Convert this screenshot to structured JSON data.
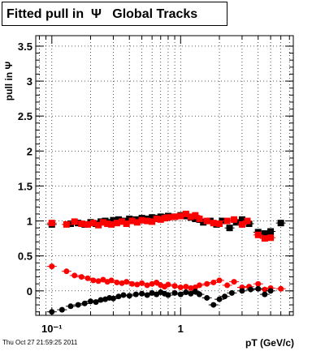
{
  "title": "Fitted pull in  Ψ   Global Tracks",
  "timestamp": "Thu Oct 27 21:59:25 2011",
  "chart_data": {
    "type": "scatter",
    "title": "Fitted pull in  Ψ   Global Tracks",
    "xlabel": "pT (GeV/c)",
    "ylabel": "pull in Ψ",
    "xscale": "log",
    "xlim": [
      0.075,
      7.5
    ],
    "ylim": [
      -0.35,
      3.65
    ],
    "grid": true,
    "x_tick_labels": [
      "10⁻¹",
      "1"
    ],
    "y_tick_labels": [
      "0",
      "0.5",
      "1",
      "1.5",
      "2",
      "2.5",
      "3",
      "3.5"
    ],
    "series": [
      {
        "marker": "square",
        "color": "#000000",
        "x": [
          0.1,
          0.14,
          0.16,
          0.18,
          0.2,
          0.22,
          0.24,
          0.26,
          0.28,
          0.3,
          0.33,
          0.36,
          0.4,
          0.45,
          0.5,
          0.55,
          0.6,
          0.65,
          0.7,
          0.75,
          0.8,
          0.9,
          1.0,
          1.1,
          1.2,
          1.3,
          1.4,
          1.5,
          1.7,
          1.9,
          2.1,
          2.4,
          2.7,
          3.0,
          3.4,
          4.0,
          4.5,
          5.0,
          6.0
        ],
        "y": [
          0.95,
          0.96,
          0.97,
          0.95,
          0.98,
          0.96,
          0.99,
          1.0,
          0.98,
          1.01,
          1.02,
          1.0,
          1.03,
          1.02,
          1.04,
          1.03,
          1.05,
          1.04,
          1.06,
          1.05,
          1.07,
          1.06,
          1.08,
          1.07,
          1.05,
          1.03,
          1.02,
          0.98,
          1.0,
          0.95,
          1.0,
          0.9,
          0.98,
          1.02,
          0.96,
          0.84,
          0.82,
          0.85,
          0.97
        ]
      },
      {
        "marker": "square",
        "color": "#ff0000",
        "x": [
          0.1,
          0.13,
          0.15,
          0.17,
          0.19,
          0.21,
          0.23,
          0.25,
          0.27,
          0.29,
          0.32,
          0.35,
          0.38,
          0.42,
          0.46,
          0.5,
          0.55,
          0.6,
          0.65,
          0.7,
          0.75,
          0.8,
          0.9,
          1.0,
          1.1,
          1.2,
          1.3,
          1.4,
          1.6,
          1.8,
          2.0,
          2.3,
          2.6,
          3.0,
          3.3,
          4.0,
          4.5,
          5.0
        ],
        "y": [
          0.97,
          0.95,
          0.99,
          0.96,
          0.95,
          0.97,
          0.94,
          0.98,
          0.96,
          0.95,
          0.97,
          0.99,
          0.96,
          1.0,
          0.98,
          1.01,
          1.0,
          0.99,
          1.03,
          1.02,
          1.04,
          1.05,
          1.06,
          1.07,
          1.1,
          1.06,
          1.08,
          1.03,
          1.0,
          0.97,
          0.96,
          1.0,
          1.02,
          0.95,
          1.0,
          0.8,
          0.75,
          0.76
        ]
      },
      {
        "marker": "circle",
        "color": "#ff0000",
        "x": [
          0.1,
          0.13,
          0.15,
          0.17,
          0.19,
          0.21,
          0.23,
          0.25,
          0.27,
          0.29,
          0.32,
          0.35,
          0.38,
          0.42,
          0.46,
          0.5,
          0.55,
          0.6,
          0.65,
          0.7,
          0.75,
          0.8,
          0.9,
          1.0,
          1.1,
          1.2,
          1.3,
          1.4,
          1.6,
          1.8,
          2.0,
          2.3,
          2.6,
          3.0,
          3.4,
          4.0,
          4.5,
          5.0,
          6.0
        ],
        "y": [
          0.35,
          0.28,
          0.22,
          0.2,
          0.18,
          0.15,
          0.14,
          0.16,
          0.13,
          0.15,
          0.12,
          0.11,
          0.13,
          0.1,
          0.09,
          0.11,
          0.08,
          0.1,
          0.12,
          0.08,
          0.06,
          0.09,
          0.07,
          0.05,
          0.06,
          0.04,
          0.05,
          0.08,
          0.1,
          0.12,
          0.15,
          0.08,
          0.13,
          0.05,
          0.06,
          0.1,
          0.02,
          0.04,
          0.03
        ]
      },
      {
        "marker": "circle",
        "color": "#000000",
        "x": [
          0.1,
          0.12,
          0.14,
          0.16,
          0.18,
          0.2,
          0.22,
          0.24,
          0.26,
          0.28,
          0.3,
          0.33,
          0.36,
          0.4,
          0.45,
          0.5,
          0.55,
          0.6,
          0.65,
          0.7,
          0.75,
          0.8,
          0.9,
          1.0,
          1.1,
          1.2,
          1.3,
          1.4,
          1.6,
          1.8,
          2.0,
          2.2,
          2.5,
          3.0,
          3.5,
          4.0,
          4.5,
          5.0
        ],
        "y": [
          -0.3,
          -0.27,
          -0.22,
          -0.2,
          -0.18,
          -0.15,
          -0.16,
          -0.13,
          -0.12,
          -0.1,
          -0.11,
          -0.08,
          -0.06,
          -0.07,
          -0.05,
          -0.04,
          -0.06,
          -0.03,
          -0.05,
          -0.02,
          -0.04,
          -0.06,
          -0.03,
          -0.05,
          -0.02,
          -0.04,
          -0.01,
          -0.05,
          -0.1,
          -0.2,
          -0.12,
          -0.08,
          -0.03,
          0.0,
          0.02,
          0.03,
          -0.05,
          0.0
        ]
      }
    ]
  }
}
